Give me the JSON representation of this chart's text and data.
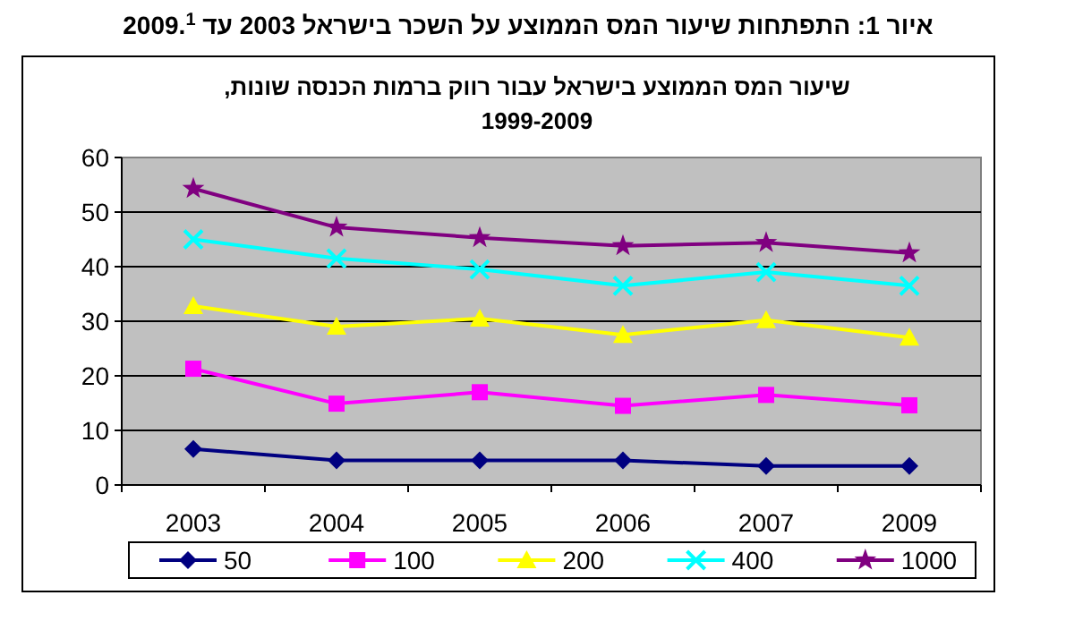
{
  "chart_data": {
    "type": "line",
    "title": "שיעור המס הממוצע בישראל עבור רווק ברמות הכנסה שונות, 1999-2009",
    "annotations": [
      "איור 1: התפתחות שיעור המס הממוצע על השכר בישראל 2003 עד 2009.$^{1}$"
    ],
    "categories": [
      "2003",
      "2004",
      "2005",
      "2006",
      "2007",
      "2009"
    ],
    "series": [
      {
        "name": "50",
        "color": "#000080",
        "marker": "diamond",
        "values": [
          6.6,
          4.5,
          4.5,
          4.5,
          3.5,
          3.5
        ]
      },
      {
        "name": "100",
        "color": "#ff00ff",
        "marker": "square",
        "values": [
          21.3,
          14.9,
          17.0,
          14.5,
          16.5,
          14.6
        ]
      },
      {
        "name": "200",
        "color": "#ffff00",
        "marker": "triangle",
        "values": [
          32.8,
          29.0,
          30.5,
          27.5,
          30.2,
          27.0
        ]
      },
      {
        "name": "400",
        "color": "#00ffff",
        "marker": "cross",
        "values": [
          45.0,
          41.5,
          39.5,
          36.5,
          39.0,
          36.5
        ]
      },
      {
        "name": "1000",
        "color": "#800080",
        "marker": "star",
        "values": [
          54.3,
          47.2,
          45.3,
          43.8,
          44.4,
          42.5
        ]
      }
    ],
    "ylim": [
      0,
      60
    ],
    "yticks": [
      0,
      10,
      20,
      30,
      40,
      50,
      60
    ],
    "grid": "y",
    "legend": "bottom"
  }
}
